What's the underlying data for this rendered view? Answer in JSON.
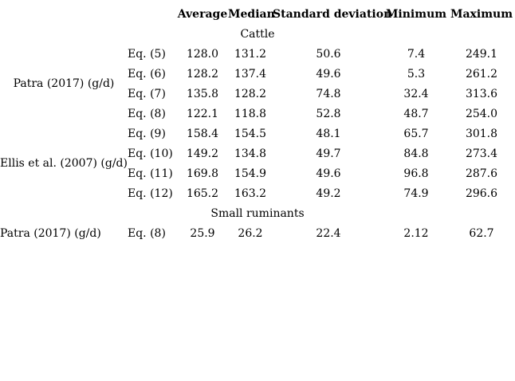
{
  "page": {
    "background_color": "#ffffff",
    "text_color": "#000000"
  },
  "table": {
    "header": {
      "average": "Average",
      "median": "Median",
      "std_deviation": "Standard deviation",
      "minimum": "Minimum",
      "maximum": "Maximum"
    },
    "sections": {
      "cattle": "Cattle",
      "small_ruminants": "Small ruminants"
    },
    "groups": [
      {
        "label": "Patra (2017) (g/d)",
        "rows": [
          {
            "eq": "Eq. (5)",
            "average": "128.0",
            "median": "131.2",
            "std": "50.6",
            "min": "7.4",
            "max": "249.1"
          },
          {
            "eq": "Eq. (6)",
            "average": "128.2",
            "median": "137.4",
            "std": "49.6",
            "min": "5.3",
            "max": "261.2"
          },
          {
            "eq": "Eq. (7)",
            "average": "135.8",
            "median": "128.2",
            "std": "74.8",
            "min": "32.4",
            "max": "313.6"
          },
          {
            "eq": "Eq. (8)",
            "average": "122.1",
            "median": "118.8",
            "std": "52.8",
            "min": "48.7",
            "max": "254.0"
          }
        ]
      },
      {
        "label": "Ellis et al. (2007) (g/d)",
        "rows": [
          {
            "eq": "Eq. (9)",
            "average": "158.4",
            "median": "154.5",
            "std": "48.1",
            "min": "65.7",
            "max": "301.8"
          },
          {
            "eq": "Eq. (10)",
            "average": "149.2",
            "median": "134.8",
            "std": "49.7",
            "min": "84.8",
            "max": "273.4"
          },
          {
            "eq": "Eq. (11)",
            "average": "169.8",
            "median": "154.9",
            "std": "49.6",
            "min": "96.8",
            "max": "287.6"
          },
          {
            "eq": "Eq. (12)",
            "average": "165.2",
            "median": "163.2",
            "std": "49.2",
            "min": "74.9",
            "max": "296.6"
          }
        ]
      },
      {
        "label": "Patra (2017) (g/d)",
        "rows": [
          {
            "eq": "Eq. (8)",
            "average": "25.9",
            "median": "26.2",
            "std": "22.4",
            "min": "2.12",
            "max": "62.7"
          }
        ]
      }
    ]
  }
}
